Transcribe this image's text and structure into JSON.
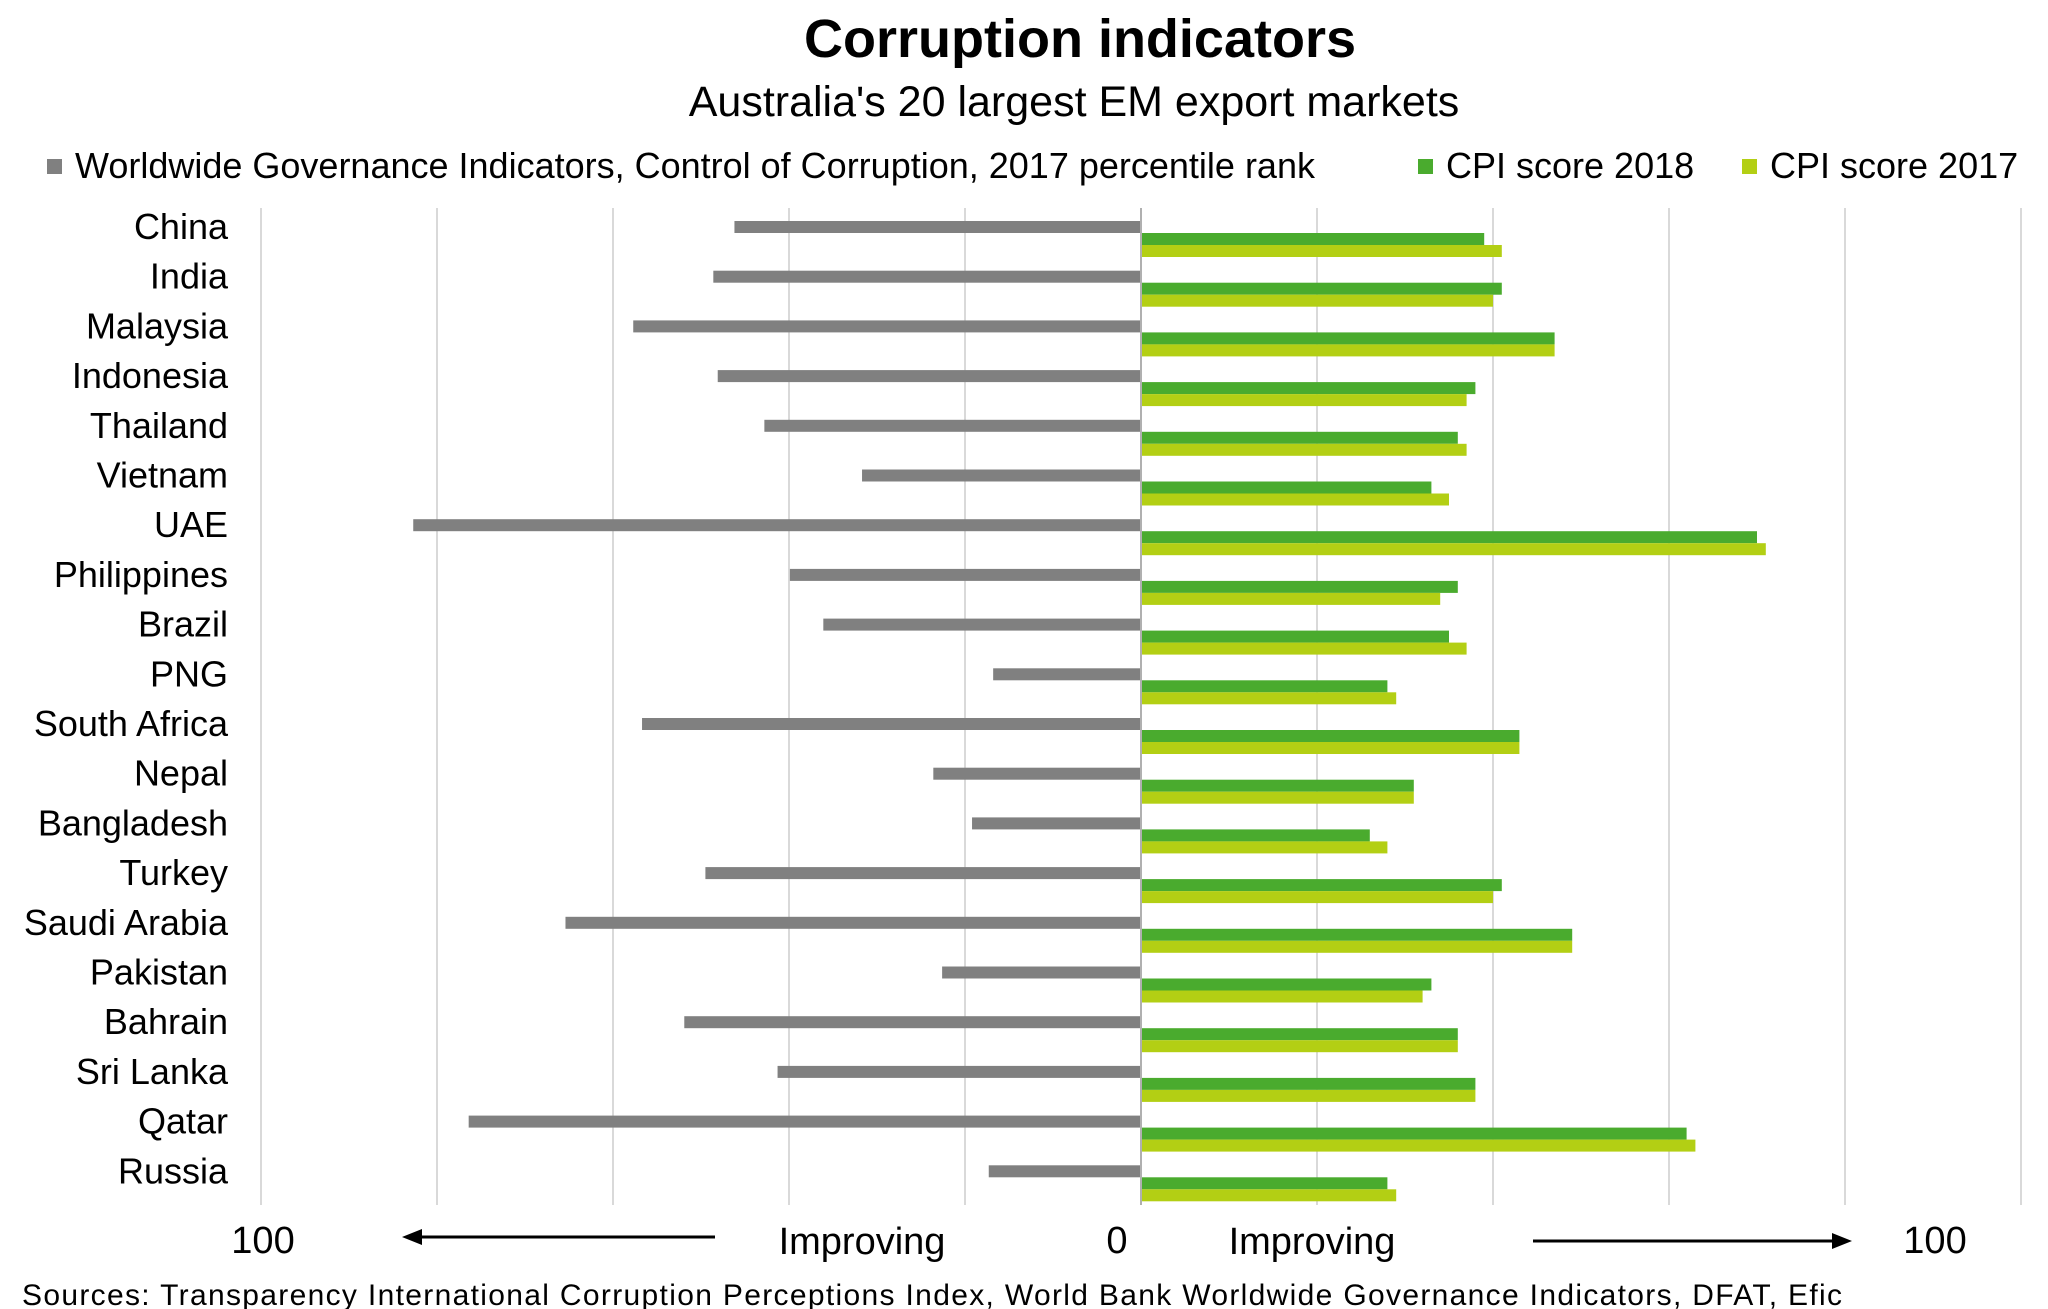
{
  "chart_data": {
    "type": "bar",
    "orientation": "horizontal-diverging",
    "title": "Corruption indicators",
    "subtitle": "Australia's 20 largest EM export markets",
    "categories": [
      "China",
      "India",
      "Malaysia",
      "Indonesia",
      "Thailand",
      "Vietnam",
      "UAE",
      "Philippines",
      "Brazil",
      "PNG",
      "South Africa",
      "Nepal",
      "Bangladesh",
      "Turkey",
      "Saudi Arabia",
      "Pakistan",
      "Bahrain",
      "Sri Lanka",
      "Qatar",
      "Russia"
    ],
    "series": [
      {
        "name": "Worldwide Governance Indicators, Control of Corruption, 2017 percentile rank",
        "direction": "left",
        "color": "#808080",
        "values": [
          46.2,
          48.6,
          57.7,
          48.1,
          42.8,
          31.7,
          82.7,
          39.9,
          36.1,
          16.8,
          56.7,
          23.6,
          19.2,
          49.5,
          65.4,
          22.6,
          51.9,
          41.3,
          76.4,
          17.3
        ]
      },
      {
        "name": "CPI score 2018",
        "direction": "right",
        "color": "#4aab2e",
        "values": [
          39,
          41,
          47,
          38,
          36,
          33,
          70,
          36,
          35,
          28,
          43,
          31,
          26,
          41,
          49,
          33,
          36,
          38,
          62,
          28
        ]
      },
      {
        "name": "CPI score 2017",
        "direction": "right",
        "color": "#b3cf14",
        "values": [
          41,
          40,
          47,
          37,
          37,
          35,
          71,
          34,
          37,
          29,
          43,
          31,
          28,
          40,
          49,
          32,
          36,
          38,
          63,
          29
        ]
      }
    ],
    "xlim_left": [
      100,
      0
    ],
    "xlim_right": [
      0,
      100
    ],
    "axis_labels": {
      "left_max": "100",
      "center": "0",
      "right_max": "100",
      "left_arrow_label": "Improving",
      "right_arrow_label": "Improving"
    },
    "grid": true,
    "legend_position": "top"
  },
  "source": "Sources: Transparency International  Corruption Perceptions Index,  World Bank Worldwide Governance Indicators,  DFAT, Efic"
}
